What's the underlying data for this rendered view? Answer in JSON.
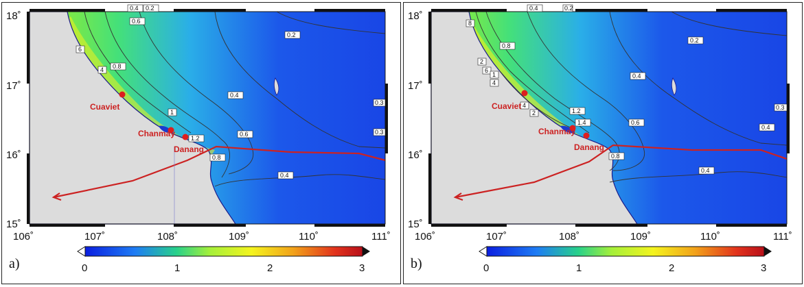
{
  "colors": {
    "land": "#dcdcdc",
    "coast": "#1a1a8a",
    "contour": "#333333",
    "route": "#cc2222",
    "place_marker": "#dd1f1f",
    "place_label": "#cc2222"
  },
  "axes": {
    "lon_ticks": [
      "106˚",
      "107˚",
      "108˚",
      "109˚",
      "110˚",
      "111˚"
    ],
    "lat_ticks": [
      "18˚",
      "17˚",
      "16˚",
      "15˚"
    ]
  },
  "colorbar": {
    "ticks": [
      "0",
      "1",
      "2",
      "3"
    ],
    "colors": [
      "#0a1ee0",
      "#1e7cf4",
      "#28d18a",
      "#a5f03a",
      "#f4f41e",
      "#f2a21a",
      "#e2331c",
      "#b8101a"
    ]
  },
  "places": {
    "cuaviet": "Cuaviet",
    "chanmay": "Chanmay",
    "danang": "Danang"
  },
  "panels": [
    {
      "label": "a)",
      "contour_labels": [
        "0.4",
        "0.2",
        "0.6",
        "6",
        "4",
        "0.8",
        "0.2",
        "0.4",
        "1",
        "1.2",
        "0.6",
        "0.8",
        "0.4",
        "0.3",
        "0.3"
      ]
    },
    {
      "label": "b)",
      "contour_labels": [
        "0.4",
        "0.2",
        "8",
        "0.8",
        "0.2",
        "2",
        "6",
        "1",
        "4",
        "0.4",
        "4",
        "2",
        "1.2",
        "1.4",
        "0.6",
        "0.4",
        "0.8",
        "0.4",
        "0.3"
      ]
    }
  ]
}
